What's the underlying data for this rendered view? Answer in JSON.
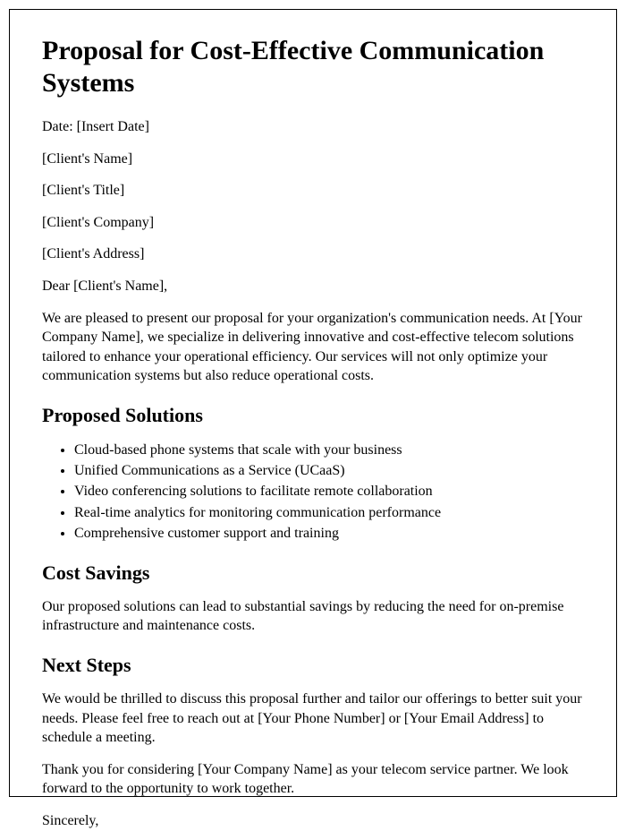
{
  "title": "Proposal for Cost-Effective Communication Systems",
  "date_line": "Date: [Insert Date]",
  "client": {
    "name": "[Client's Name]",
    "title": "[Client's Title]",
    "company": "[Client's Company]",
    "address": "[Client's Address]"
  },
  "salutation": "Dear [Client's Name],",
  "intro_paragraph": "We are pleased to present our proposal for your organization's communication needs. At [Your Company Name], we specialize in delivering innovative and cost-effective telecom solutions tailored to enhance your operational efficiency. Our services will not only optimize your communication systems but also reduce operational costs.",
  "sections": {
    "proposed_solutions": {
      "heading": "Proposed Solutions",
      "items": [
        "Cloud-based phone systems that scale with your business",
        "Unified Communications as a Service (UCaaS)",
        "Video conferencing solutions to facilitate remote collaboration",
        "Real-time analytics for monitoring communication performance",
        "Comprehensive customer support and training"
      ]
    },
    "cost_savings": {
      "heading": "Cost Savings",
      "body": "Our proposed solutions can lead to substantial savings by reducing the need for on-premise infrastructure and maintenance costs."
    },
    "next_steps": {
      "heading": "Next Steps",
      "body1": "We would be thrilled to discuss this proposal further and tailor our offerings to better suit your needs. Please feel free to reach out at [Your Phone Number] or [Your Email Address] to schedule a meeting.",
      "body2": "Thank you for considering [Your Company Name] as your telecom service partner. We look forward to the opportunity to work together."
    }
  },
  "closing": "Sincerely,"
}
